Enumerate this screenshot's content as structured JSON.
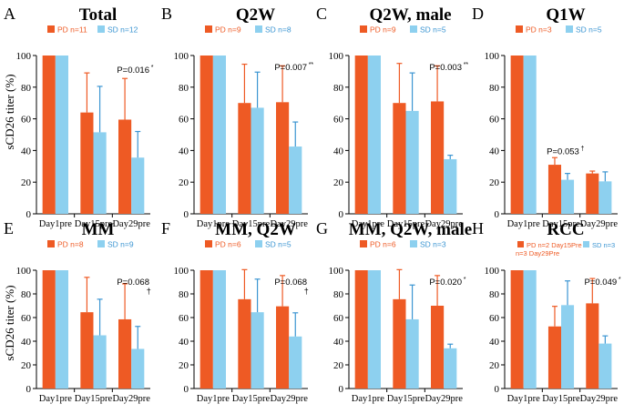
{
  "figure": {
    "y_axis_label": "sCD26 titer (%)",
    "colors": {
      "pd": "#EE5A24",
      "sd": "#8DD0EF",
      "error_pd": "#EE5A24",
      "error_sd": "#3B95D2",
      "axis": "#000000"
    }
  },
  "chart_data": [
    {
      "type": "bar",
      "letter": "A",
      "title": "Total",
      "categories": [
        "Day1pre",
        "Day15pre",
        "Day29pre"
      ],
      "legend": [
        "PD n=11",
        "SD n=12"
      ],
      "series": [
        {
          "name": "PD",
          "values": [
            100,
            64,
            59.5
          ],
          "errors": [
            0,
            25,
            26
          ]
        },
        {
          "name": "SD",
          "values": [
            100,
            51.5,
            35.5
          ],
          "errors": [
            0,
            29,
            16.5
          ]
        }
      ],
      "annotation": {
        "text": "P=0.016",
        "mark": "*",
        "category": "Day29pre"
      },
      "ylim": [
        0,
        100
      ],
      "yticks": [
        "0",
        "20",
        "40",
        "60",
        "80",
        "100"
      ]
    },
    {
      "type": "bar",
      "letter": "B",
      "title": "Q2W",
      "categories": [
        "Day1pre",
        "Day15pre",
        "Day29pre"
      ],
      "legend": [
        "PD n=9",
        "SD n=8"
      ],
      "series": [
        {
          "name": "PD",
          "values": [
            100,
            70,
            70.5
          ],
          "errors": [
            0,
            24.5,
            23
          ]
        },
        {
          "name": "SD",
          "values": [
            100,
            67,
            42.5
          ],
          "errors": [
            0,
            22.5,
            15.5
          ]
        }
      ],
      "annotation": {
        "text": "P=0.007",
        "mark": "**",
        "category": "Day29pre"
      },
      "ylim": [
        0,
        100
      ],
      "yticks": [
        "0",
        "20",
        "40",
        "60",
        "80",
        "100"
      ]
    },
    {
      "type": "bar",
      "letter": "C",
      "title": "Q2W, male",
      "categories": [
        "Day1pre",
        "Day15pre",
        "Day29pre"
      ],
      "legend": [
        "PD n=9",
        "SD n=5"
      ],
      "series": [
        {
          "name": "PD",
          "values": [
            100,
            70,
            71
          ],
          "errors": [
            0,
            25,
            22.5
          ]
        },
        {
          "name": "SD",
          "values": [
            100,
            65,
            34.5
          ],
          "errors": [
            0,
            24,
            2.5
          ]
        }
      ],
      "annotation": {
        "text": "P=0.003",
        "mark": "**",
        "category": "Day29pre"
      },
      "ylim": [
        0,
        100
      ],
      "yticks": [
        "0",
        "20",
        "40",
        "60",
        "80",
        "100"
      ]
    },
    {
      "type": "bar",
      "letter": "D",
      "title": "Q1W",
      "categories": [
        "Day1pre",
        "Day15pre",
        "Day29pre"
      ],
      "legend": [
        "PD n=3",
        "SD n=5"
      ],
      "series": [
        {
          "name": "PD",
          "values": [
            100,
            31,
            25.5
          ],
          "errors": [
            0,
            4.5,
            1.5
          ]
        },
        {
          "name": "SD",
          "values": [
            100,
            21.5,
            20.5
          ],
          "errors": [
            0,
            4,
            6
          ]
        }
      ],
      "annotation": {
        "text": "P=0.053",
        "mark": "†",
        "category": "Day15pre"
      },
      "ylim": [
        0,
        100
      ],
      "yticks": [
        "0",
        "20",
        "40",
        "60",
        "80",
        "100"
      ]
    },
    {
      "type": "bar",
      "letter": "E",
      "title": "MM",
      "categories": [
        "Day1pre",
        "Day15pre",
        "Day29pre"
      ],
      "legend": [
        "PD n=8",
        "SD n=9"
      ],
      "series": [
        {
          "name": "PD",
          "values": [
            100,
            64.5,
            58.5
          ],
          "errors": [
            0,
            29.5,
            30
          ]
        },
        {
          "name": "SD",
          "values": [
            100,
            45,
            33.5
          ],
          "errors": [
            0,
            30.5,
            19
          ]
        }
      ],
      "annotation": {
        "text": "P=0.068",
        "mark": "†",
        "category": "Day29pre"
      },
      "ylim": [
        0,
        100
      ],
      "yticks": [
        "0",
        "20",
        "40",
        "60",
        "80",
        "100"
      ]
    },
    {
      "type": "bar",
      "letter": "F",
      "title": "MM, Q2W",
      "categories": [
        "Day1pre",
        "Day15pre",
        "Day29pre"
      ],
      "legend": [
        "PD n=6",
        "SD n=5"
      ],
      "series": [
        {
          "name": "PD",
          "values": [
            100,
            75.5,
            69.5
          ],
          "errors": [
            0,
            25,
            26
          ]
        },
        {
          "name": "SD",
          "values": [
            100,
            64.5,
            44
          ],
          "errors": [
            0,
            28,
            20
          ]
        }
      ],
      "annotation": {
        "text": "P=0.068",
        "mark": "†",
        "category": "Day29pre"
      },
      "ylim": [
        0,
        100
      ],
      "yticks": [
        "0",
        "20",
        "40",
        "60",
        "80",
        "100"
      ]
    },
    {
      "type": "bar",
      "letter": "G",
      "title": "MM, Q2W, male",
      "categories": [
        "Day1pre",
        "Day15pre",
        "Day29pre"
      ],
      "legend": [
        "PD n=6",
        "SD n=3"
      ],
      "series": [
        {
          "name": "PD",
          "values": [
            100,
            75.5,
            70
          ],
          "errors": [
            0,
            25,
            25.5
          ]
        },
        {
          "name": "SD",
          "values": [
            100,
            58.5,
            34
          ],
          "errors": [
            0,
            29,
            3.5
          ]
        }
      ],
      "annotation": {
        "text": "P=0.020",
        "mark": "*",
        "category": "Day29pre"
      },
      "ylim": [
        0,
        100
      ],
      "yticks": [
        "0",
        "20",
        "40",
        "60",
        "80",
        "100"
      ]
    },
    {
      "type": "bar",
      "letter": "H",
      "title": "RCC",
      "categories": [
        "Day1pre",
        "Day15pre",
        "Day29pre"
      ],
      "legend": [
        "PD n=2 Day15Pre n=3 Day29Pre",
        "SD n=3"
      ],
      "series": [
        {
          "name": "PD",
          "values": [
            100,
            52.5,
            72
          ],
          "errors": [
            0,
            17,
            21
          ]
        },
        {
          "name": "SD",
          "values": [
            100,
            70.5,
            38
          ],
          "errors": [
            0,
            20.5,
            6.5
          ]
        }
      ],
      "annotation": {
        "text": "P=0.049",
        "mark": "*",
        "category": "Day29pre"
      },
      "ylim": [
        0,
        100
      ],
      "yticks": [
        "0",
        "20",
        "40",
        "60",
        "80",
        "100"
      ]
    }
  ]
}
